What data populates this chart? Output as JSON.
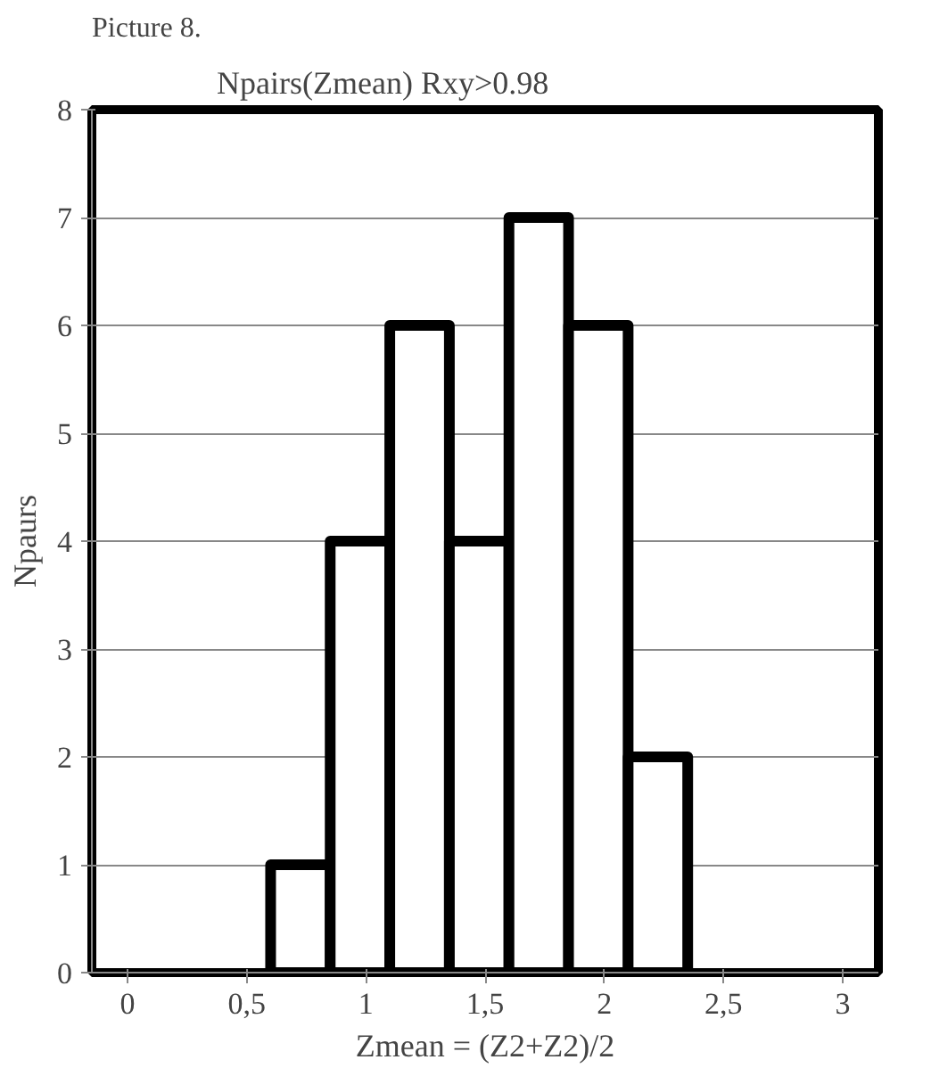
{
  "chart_data": {
    "type": "histogram",
    "title": "Npairs(Zmean)  Rxy>0.98",
    "xlabel": "Zmean = (Z2+Z2)/2",
    "ylabel": "Npaurs",
    "annotations": [
      "Picture 8."
    ],
    "bins": [
      0.6,
      0.85,
      1.1,
      1.35,
      1.6,
      1.85,
      2.1,
      2.35
    ],
    "values": [
      1,
      4,
      6,
      4,
      7,
      6,
      2
    ],
    "color": "#ffffff",
    "xlim": [
      -0.15,
      3.15
    ],
    "xticks": [
      0,
      {
        "value": 0.5,
        "label": "0,5"
      },
      1,
      {
        "value": 1.5,
        "label": "1,5"
      },
      2,
      {
        "value": 2.5,
        "label": "2,5"
      },
      3
    ],
    "ylim": [
      0,
      8
    ],
    "yticks": [
      0,
      1,
      2,
      3,
      4,
      5,
      6,
      7,
      8
    ],
    "grid": "y"
  }
}
